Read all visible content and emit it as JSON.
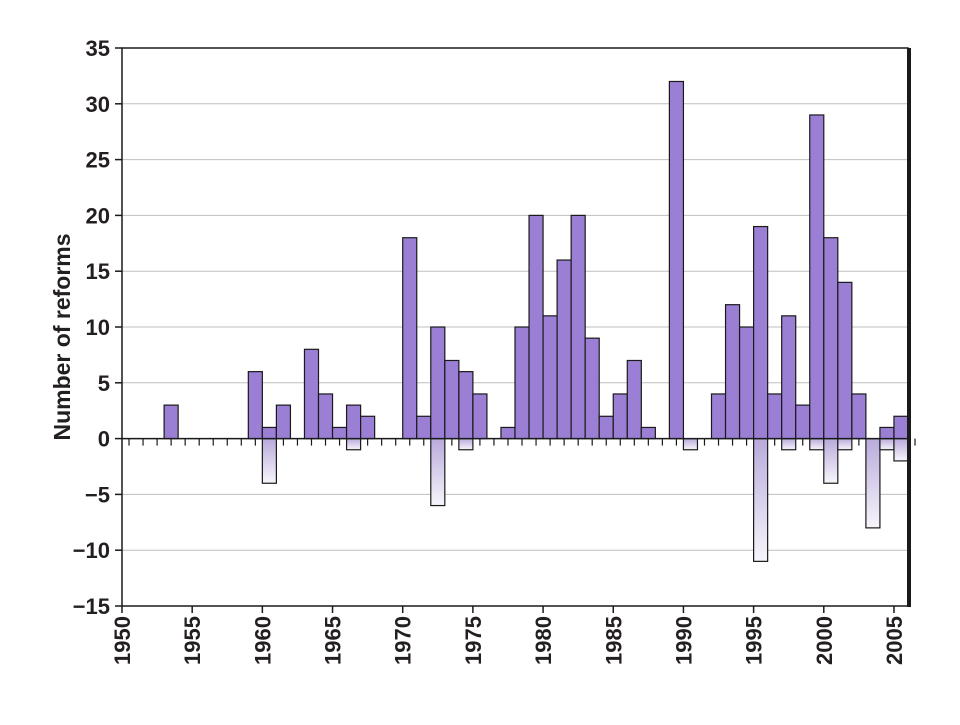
{
  "chart_data": {
    "type": "bar",
    "title": "",
    "xlabel": "",
    "ylabel": "Number of reforms",
    "xlim": [
      1950,
      2006
    ],
    "ylim": [
      -15,
      35
    ],
    "y_ticks": [
      -15,
      -10,
      -5,
      0,
      5,
      10,
      15,
      20,
      25,
      30,
      35
    ],
    "x_ticks": [
      1950,
      1955,
      1960,
      1965,
      1970,
      1975,
      1980,
      1985,
      1990,
      1995,
      2000,
      2005
    ],
    "grid": true,
    "legend": "none",
    "colors": {
      "positive_fill": "#9b7fd4",
      "negative_fill": "#e6e0f1",
      "bar_stroke": "#1a1a1a",
      "grid": "#bfbfbf"
    },
    "series": [
      {
        "values": [
          {
            "x": 1953,
            "y": 3
          },
          {
            "x": 1959,
            "y": 6
          },
          {
            "x": 1960,
            "y": 1
          },
          {
            "x": 1961,
            "y": 3
          },
          {
            "x": 1963,
            "y": 8
          },
          {
            "x": 1964,
            "y": 4
          },
          {
            "x": 1965,
            "y": 1
          },
          {
            "x": 1966,
            "y": 3
          },
          {
            "x": 1967,
            "y": 2
          },
          {
            "x": 1970,
            "y": 18
          },
          {
            "x": 1971,
            "y": 2
          },
          {
            "x": 1972,
            "y": 10
          },
          {
            "x": 1973,
            "y": 7
          },
          {
            "x": 1974,
            "y": 6
          },
          {
            "x": 1975,
            "y": 4
          },
          {
            "x": 1977,
            "y": 1
          },
          {
            "x": 1978,
            "y": 10
          },
          {
            "x": 1979,
            "y": 20
          },
          {
            "x": 1980,
            "y": 11
          },
          {
            "x": 1981,
            "y": 16
          },
          {
            "x": 1982,
            "y": 20
          },
          {
            "x": 1983,
            "y": 9
          },
          {
            "x": 1984,
            "y": 2
          },
          {
            "x": 1985,
            "y": 4
          },
          {
            "x": 1986,
            "y": 7
          },
          {
            "x": 1987,
            "y": 1
          },
          {
            "x": 1989,
            "y": 32
          },
          {
            "x": 1992,
            "y": 4
          },
          {
            "x": 1993,
            "y": 12
          },
          {
            "x": 1994,
            "y": 10
          },
          {
            "x": 1995,
            "y": 19
          },
          {
            "x": 1996,
            "y": 4
          },
          {
            "x": 1997,
            "y": 11
          },
          {
            "x": 1998,
            "y": 3
          },
          {
            "x": 1999,
            "y": 29
          },
          {
            "x": 2000,
            "y": 18
          },
          {
            "x": 2001,
            "y": 14
          },
          {
            "x": 2002,
            "y": 4
          },
          {
            "x": 2004,
            "y": 1
          },
          {
            "x": 2005,
            "y": 2
          }
        ]
      },
      {
        "values": [
          {
            "x": 1960,
            "y": -4
          },
          {
            "x": 1966,
            "y": -1
          },
          {
            "x": 1972,
            "y": -6
          },
          {
            "x": 1974,
            "y": -1
          },
          {
            "x": 1990,
            "y": -1
          },
          {
            "x": 1995,
            "y": -11
          },
          {
            "x": 1997,
            "y": -1
          },
          {
            "x": 1999,
            "y": -1
          },
          {
            "x": 2000,
            "y": -4
          },
          {
            "x": 2001,
            "y": -1
          },
          {
            "x": 2003,
            "y": -8
          },
          {
            "x": 2004,
            "y": -1
          },
          {
            "x": 2005,
            "y": -2
          }
        ]
      }
    ]
  }
}
